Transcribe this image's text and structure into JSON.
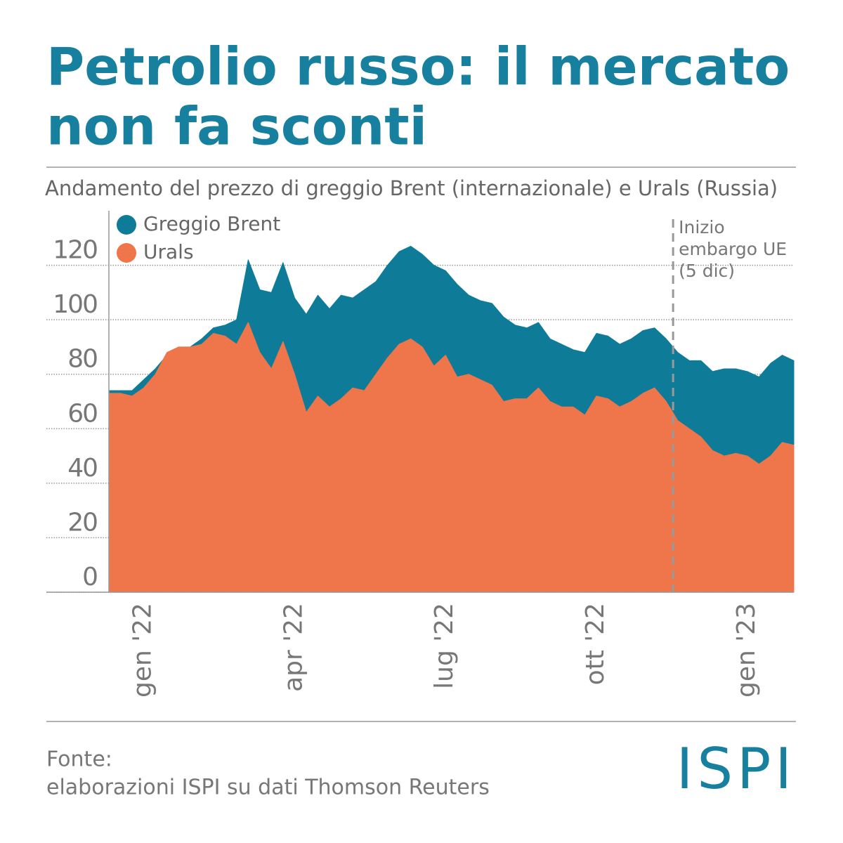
{
  "chart_data": {
    "type": "area",
    "title": [
      "Petrolio russo: il mercato",
      "non fa sconti"
    ],
    "subtitle": "Andamento del prezzo di greggio Brent (internazionale) e Urals (Russia)",
    "categories": [
      null,
      null,
      null,
      "gen '22",
      null,
      null,
      null,
      null,
      null,
      null,
      null,
      null,
      null,
      null,
      null,
      null,
      "apr '22",
      null,
      null,
      null,
      null,
      null,
      null,
      null,
      null,
      null,
      null,
      null,
      null,
      "lug '22",
      null,
      null,
      null,
      null,
      null,
      null,
      null,
      null,
      null,
      null,
      null,
      null,
      "ott '22",
      null,
      null,
      null,
      null,
      null,
      null,
      null,
      null,
      null,
      null,
      null,
      null,
      "gen '23",
      null,
      null,
      null,
      null
    ],
    "series": [
      {
        "name": "Greggio Brent",
        "color": "#0e7c99",
        "values": [
          74,
          74,
          74,
          78,
          82,
          87,
          89,
          90,
          93,
          97,
          98,
          100,
          122,
          111,
          110,
          121,
          108,
          102,
          109,
          104,
          109,
          108,
          111,
          114,
          120,
          125,
          127,
          124,
          120,
          118,
          113,
          109,
          107,
          106,
          101,
          98,
          97,
          99,
          93,
          91,
          89,
          88,
          95,
          94,
          91,
          93,
          96,
          97,
          93,
          88,
          85,
          85,
          81,
          82,
          82,
          81,
          79,
          84,
          87,
          85
        ]
      },
      {
        "name": "Urals",
        "color": "#ef754a",
        "values": [
          73,
          73,
          72,
          75,
          80,
          88,
          90,
          90,
          91,
          95,
          94,
          91,
          99,
          88,
          82,
          92,
          80,
          66,
          72,
          68,
          71,
          75,
          74,
          80,
          86,
          91,
          93,
          90,
          83,
          87,
          79,
          80,
          78,
          76,
          70,
          71,
          71,
          75,
          70,
          68,
          68,
          65,
          72,
          71,
          68,
          70,
          73,
          75,
          70,
          63,
          60,
          57,
          52,
          50,
          51,
          50,
          47,
          50,
          55,
          54
        ]
      }
    ],
    "ylim": [
      0,
      140
    ],
    "yticks": [
      0,
      20,
      40,
      60,
      80,
      100,
      120
    ],
    "grid": true,
    "annotation": {
      "text": [
        "Inizio",
        "embargo UE",
        "(5 dic)"
      ],
      "x": 48.6
    },
    "source": [
      "Fonte:",
      "elaborazioni ISPI su dati Thomson Reuters"
    ],
    "logo": "ISPI"
  }
}
